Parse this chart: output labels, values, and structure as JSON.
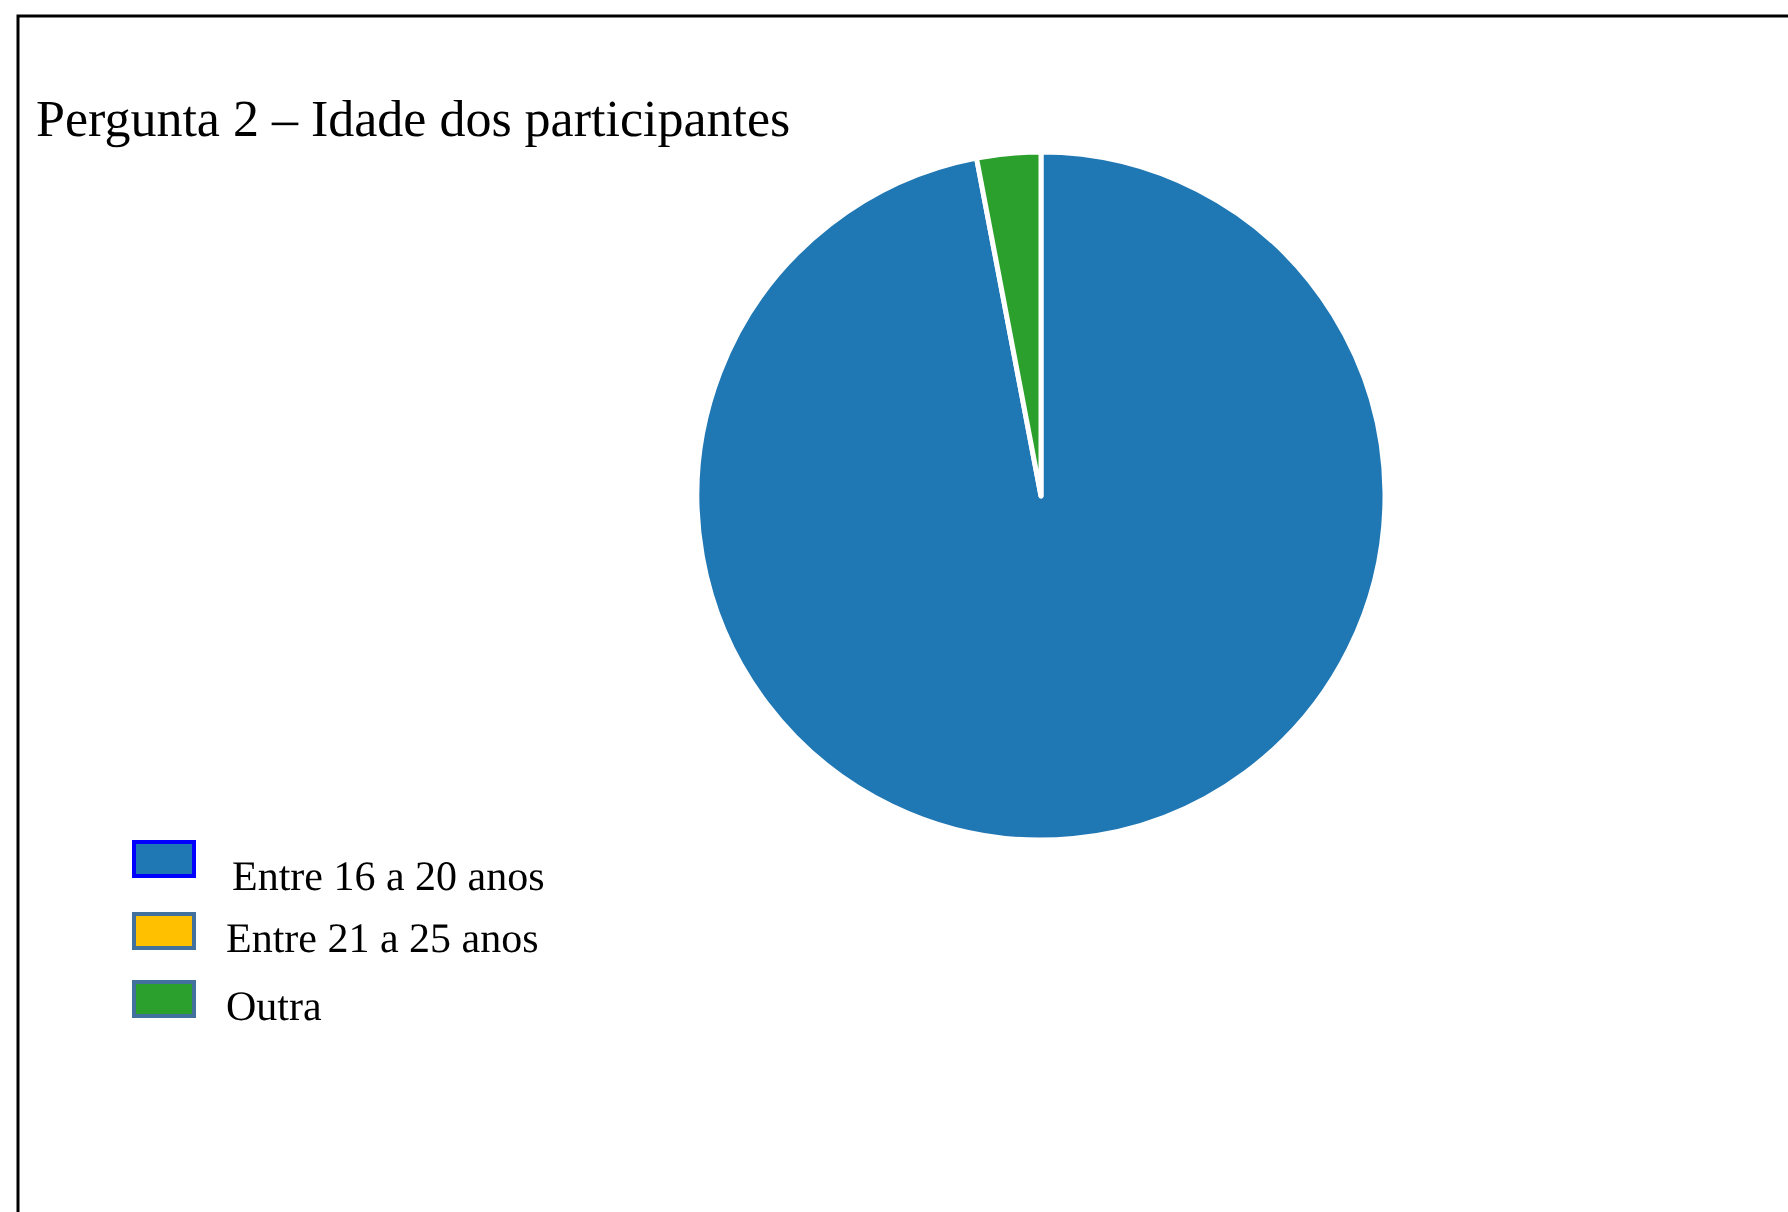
{
  "chart_data": {
    "type": "pie",
    "title": "Pergunta 2 – Idade dos participantes",
    "categories": [
      "Entre 16 a 20 anos",
      "Entre 21 a 25 anos",
      "Outra"
    ],
    "values": [
      97,
      0,
      3
    ],
    "colors": [
      "#1f77b4",
      "#ffc000",
      "#2ca02c"
    ],
    "legend": "bottom left"
  }
}
